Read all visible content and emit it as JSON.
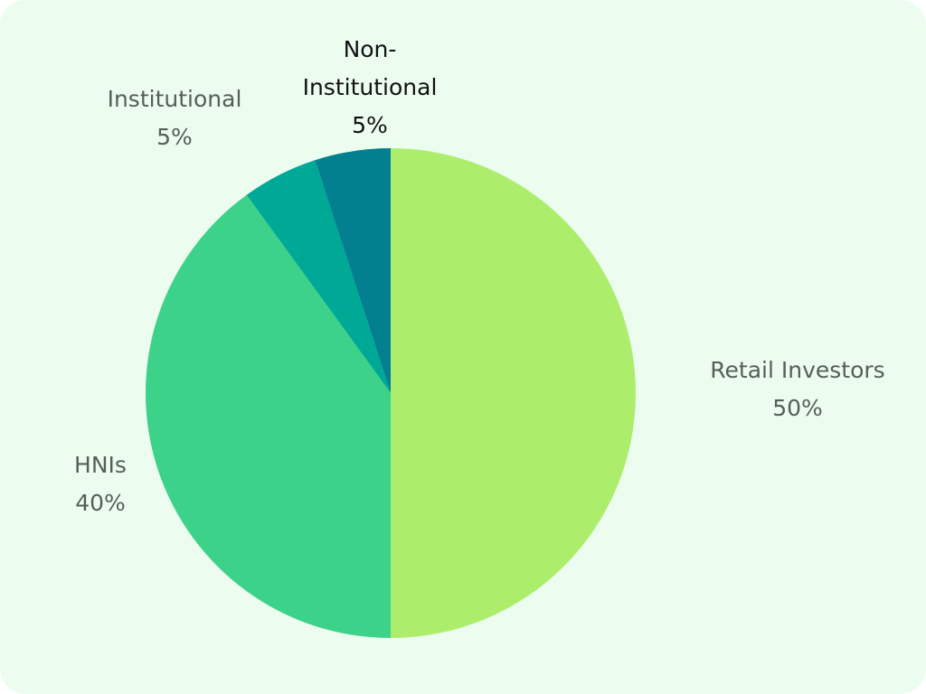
{
  "chart_data": {
    "type": "pie",
    "categories": [
      "Retail Investors",
      "HNIs",
      "Institutional",
      "Non-Institutional"
    ],
    "values": [
      50,
      40,
      5,
      5
    ],
    "value_labels": [
      "50%",
      "40%",
      "5%",
      "5%"
    ],
    "colors": [
      "#acee6c",
      "#3dd28a",
      "#00a896",
      "#028090"
    ]
  }
}
